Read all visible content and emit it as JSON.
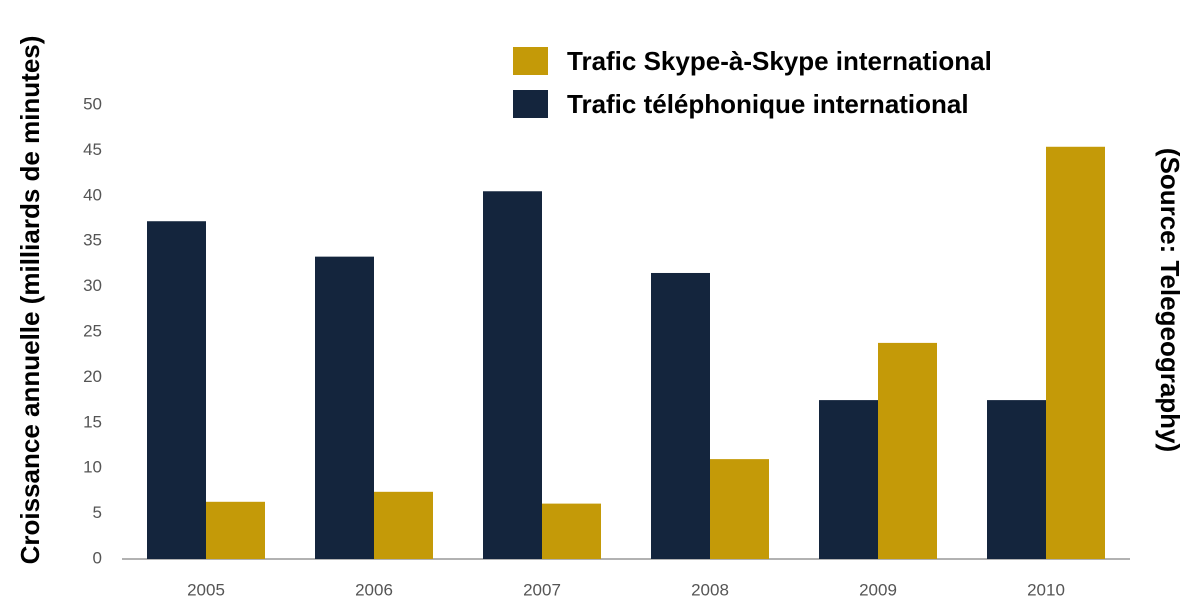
{
  "chart_data": {
    "type": "bar",
    "ylabel": "Croissance annuelle (milliards de minutes)",
    "source": "(Source: Telegeography)",
    "categories": [
      "2005",
      "2006",
      "2007",
      "2008",
      "2009",
      "2010"
    ],
    "series": [
      {
        "name": "Trafic Skype-à-Skype international",
        "color": "#c49a08",
        "values": [
          6.3,
          7.4,
          6.1,
          11,
          23.8,
          45.4
        ]
      },
      {
        "name": "Trafic téléphonique international",
        "color": "#14253d",
        "values": [
          37.2,
          33.3,
          40.5,
          31.5,
          17.5,
          17.5
        ]
      }
    ],
    "ylim": [
      0,
      50
    ],
    "yticks": [
      0,
      5,
      10,
      15,
      20,
      25,
      30,
      35,
      40,
      45,
      50
    ],
    "grid": false,
    "legend": "top"
  }
}
